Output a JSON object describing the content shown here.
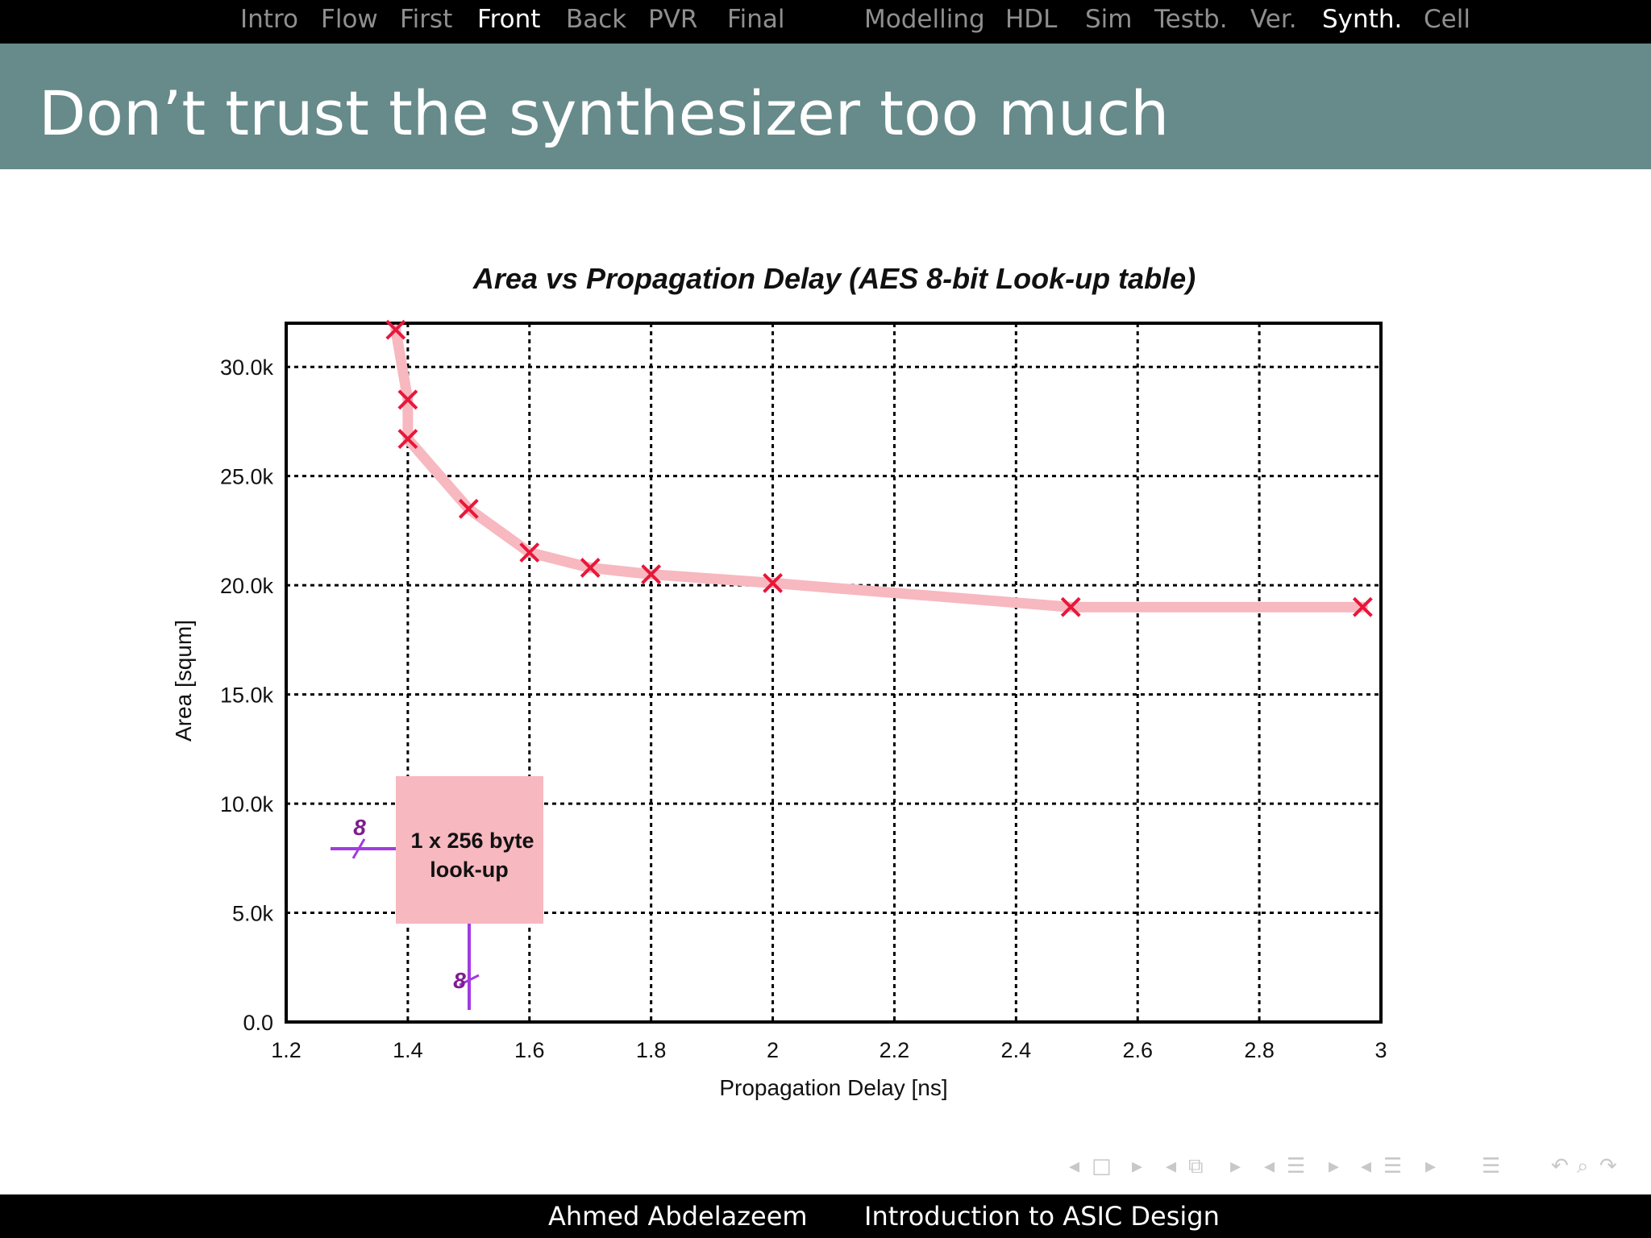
{
  "nav_left": [
    "Intro",
    "Flow",
    "First",
    "Front",
    "Back",
    "PVR",
    "Final"
  ],
  "nav_right": [
    "Modelling",
    "HDL",
    "Sim",
    "Testb.",
    "Ver.",
    "Synth.",
    "Cell"
  ],
  "active_left": "Front",
  "active_right": "Synth.",
  "slide_title": "Don’t trust the synthesizer too much",
  "footer": {
    "author": "Ahmed Abdelazeem",
    "course": "Introduction to ASIC Design"
  },
  "colors": {
    "title_bar": "#678a8a",
    "curve": "#f7b8c0",
    "marker": "#e8173a",
    "box": "#f7b8c0",
    "wire": "#a23be0"
  },
  "chart_data": {
    "type": "line",
    "title": "Area vs Propagation Delay (AES 8-bit Look-up table)",
    "xlabel": "Propagation Delay [ns]",
    "ylabel": "Area [squm]",
    "xlim": [
      1.2,
      3
    ],
    "ylim": [
      0,
      32000
    ],
    "xticks": [
      "1.2",
      "1.4",
      "1.6",
      "1.8",
      "2",
      "2.2",
      "2.4",
      "2.6",
      "2.8",
      "3"
    ],
    "yticks": [
      "0.0",
      "5.0k",
      "10.0k",
      "15.0k",
      "20.0k",
      "25.0k",
      "30.0k"
    ],
    "grid": true,
    "points": [
      {
        "x": 1.38,
        "y": 31700
      },
      {
        "x": 1.4,
        "y": 28500
      },
      {
        "x": 1.4,
        "y": 26700
      },
      {
        "x": 1.5,
        "y": 23500
      },
      {
        "x": 1.6,
        "y": 21500
      },
      {
        "x": 1.7,
        "y": 20800
      },
      {
        "x": 1.8,
        "y": 20500
      },
      {
        "x": 2.0,
        "y": 20100
      },
      {
        "x": 2.49,
        "y": 19000
      },
      {
        "x": 2.97,
        "y": 19000
      }
    ],
    "annotation": {
      "line1": "1 x 256 byte",
      "line2": "look-up",
      "input_width": "8",
      "output_width": "8"
    }
  }
}
